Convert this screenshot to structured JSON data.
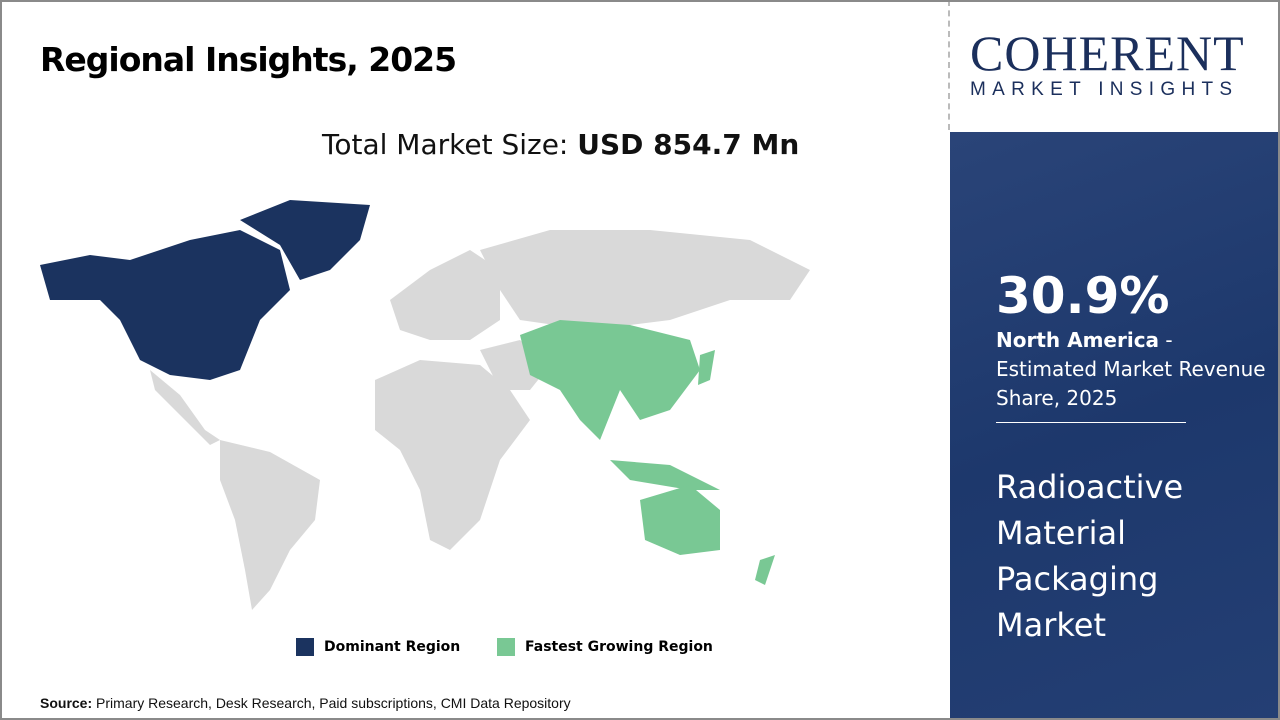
{
  "header": {
    "title": "Regional Insights, 2025"
  },
  "market_size": {
    "label": "Total Market Size: ",
    "value": "USD 854.7 Mn"
  },
  "legend": [
    {
      "label": "Dominant Region",
      "color": "#1b335f"
    },
    {
      "label": "Fastest Growing Region",
      "color": "#79c894"
    }
  ],
  "map": {
    "dominant_region": "North America",
    "fastest_growing_region": "Asia Pacific",
    "other_color": "#d9d9d9"
  },
  "source": {
    "label": "Source:",
    "text": " Primary Research, Desk Research, Paid subscriptions, CMI Data Repository"
  },
  "logo": {
    "line1": "COHERENT",
    "line2": "MARKET INSIGHTS"
  },
  "panel": {
    "share": "30.9%",
    "region": "North America",
    "desc": " - Estimated Market Revenue Share, 2025",
    "market_name": "Radioactive Material Packaging Market"
  }
}
